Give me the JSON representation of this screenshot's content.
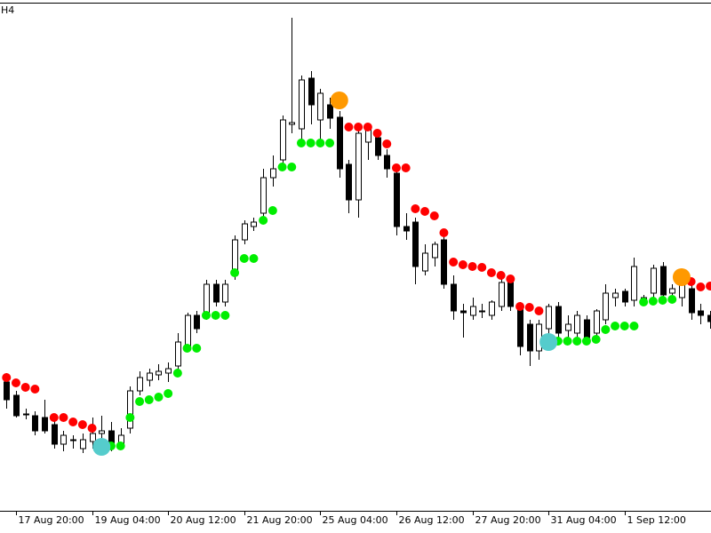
{
  "chart_data": {
    "type": "candlestick",
    "timeframe": "H4",
    "open": [
      170,
      155,
      134,
      132,
      130,
      122,
      100,
      105,
      95,
      103,
      112,
      115,
      100,
      118,
      160,
      172,
      178,
      180,
      188,
      210,
      245,
      245,
      280,
      260,
      290,
      330,
      345,
      360,
      400,
      420,
      460,
      455,
      512,
      465,
      482,
      468,
      415,
      375,
      440,
      445,
      425,
      405,
      345,
      350,
      295,
      310,
      330,
      280,
      250,
      245,
      250,
      245,
      255,
      285,
      255,
      235,
      205,
      230,
      255,
      228,
      225,
      240,
      225,
      240,
      265,
      272,
      262,
      262,
      270,
      300,
      270,
      265,
      275,
      250,
      245
    ],
    "high": [
      180,
      160,
      140,
      137,
      150,
      128,
      115,
      110,
      112,
      130,
      132,
      125,
      118,
      165,
      182,
      185,
      190,
      192,
      225,
      248,
      250,
      285,
      285,
      285,
      335,
      352,
      355,
      410,
      425,
      470,
      580,
      515,
      520,
      500,
      490,
      475,
      420,
      455,
      460,
      452,
      432,
      410,
      360,
      355,
      325,
      328,
      340,
      290,
      258,
      265,
      258,
      262,
      290,
      290,
      260,
      240,
      240,
      258,
      260,
      245,
      250,
      245,
      252,
      280,
      275,
      275,
      310,
      268,
      302,
      305,
      280,
      290,
      285,
      258,
      250
    ],
    "low": [
      140,
      130,
      128,
      110,
      112,
      95,
      92,
      95,
      90,
      95,
      100,
      92,
      95,
      112,
      155,
      165,
      172,
      170,
      182,
      205,
      225,
      240,
      255,
      255,
      285,
      325,
      340,
      350,
      390,
      410,
      450,
      440,
      460,
      440,
      455,
      400,
      360,
      355,
      420,
      420,
      400,
      335,
      330,
      280,
      290,
      300,
      275,
      240,
      220,
      240,
      242,
      240,
      250,
      250,
      200,
      188,
      195,
      222,
      220,
      215,
      220,
      215,
      218,
      235,
      255,
      255,
      255,
      258,
      265,
      260,
      262,
      255,
      240,
      235,
      230
    ],
    "close": [
      150,
      132,
      133,
      115,
      115,
      100,
      110,
      104,
      105,
      112,
      115,
      100,
      110,
      160,
      175,
      180,
      182,
      185,
      215,
      245,
      230,
      280,
      260,
      280,
      330,
      348,
      350,
      400,
      410,
      465,
      462,
      510,
      482,
      495,
      467,
      410,
      375,
      450,
      455,
      425,
      410,
      345,
      340,
      300,
      315,
      325,
      280,
      250,
      248,
      255,
      250,
      260,
      282,
      255,
      210,
      205,
      235,
      255,
      225,
      235,
      245,
      220,
      250,
      270,
      270,
      260,
      300,
      265,
      298,
      268,
      275,
      280,
      248,
      245,
      238
    ],
    "up_color": "#ffffff",
    "down_color": "#000000",
    "overlays": [
      {
        "color": "#ff0000",
        "values": [
          175,
          169,
          164,
          162,
          null,
          130,
          130,
          125,
          122,
          118,
          null,
          null,
          null,
          null,
          null,
          null,
          null,
          null,
          null,
          null,
          null,
          null,
          null,
          null,
          null,
          null,
          null,
          null,
          null,
          null,
          null,
          null,
          null,
          null,
          null,
          null,
          457,
          457,
          457,
          450,
          438,
          411,
          411,
          365,
          362,
          357,
          338,
          305,
          302,
          300,
          299,
          293,
          290,
          286,
          255,
          254,
          250,
          null,
          null,
          null,
          null,
          null,
          null,
          null,
          null,
          null,
          null,
          null,
          null,
          null,
          null,
          null,
          283,
          277,
          278
        ]
      },
      {
        "color": "#00ee00",
        "values": [
          null,
          null,
          null,
          null,
          null,
          null,
          null,
          null,
          null,
          null,
          null,
          98,
          98,
          130,
          148,
          150,
          153,
          157,
          180,
          208,
          208,
          245,
          245,
          245,
          293,
          309,
          309,
          352,
          363,
          412,
          412,
          439,
          439,
          439,
          439,
          null,
          null,
          null,
          null,
          null,
          null,
          null,
          null,
          null,
          null,
          null,
          null,
          null,
          null,
          null,
          null,
          null,
          null,
          null,
          null,
          null,
          null,
          null,
          216,
          216,
          216,
          216,
          218,
          229,
          233,
          233,
          233,
          260,
          261,
          262,
          263,
          null,
          null,
          null,
          null
        ]
      }
    ],
    "signals": [
      {
        "color": "#ff9900",
        "x": [
          35,
          71
        ],
        "values": [
          487,
          288
        ]
      },
      {
        "color": "#55cccc",
        "x": [
          10,
          57
        ],
        "values": [
          97,
          215
        ]
      }
    ],
    "xlim": [
      -0.68,
      74.09
    ],
    "ylim": [
      25,
      600
    ],
    "xticks": [
      {
        "value": 1,
        "label": "17 Aug 20:00"
      },
      {
        "value": 9,
        "label": "19 Aug 04:00"
      },
      {
        "value": 17,
        "label": "20 Aug 12:00"
      },
      {
        "value": 25,
        "label": "21 Aug 20:00"
      },
      {
        "value": 33,
        "label": "25 Aug 04:00"
      },
      {
        "value": 41,
        "label": "26 Aug 12:00"
      },
      {
        "value": 49,
        "label": "27 Aug 20:00"
      },
      {
        "value": 57,
        "label": "31 Aug 04:00"
      },
      {
        "value": 65,
        "label": "1 Sep 12:00"
      }
    ]
  }
}
